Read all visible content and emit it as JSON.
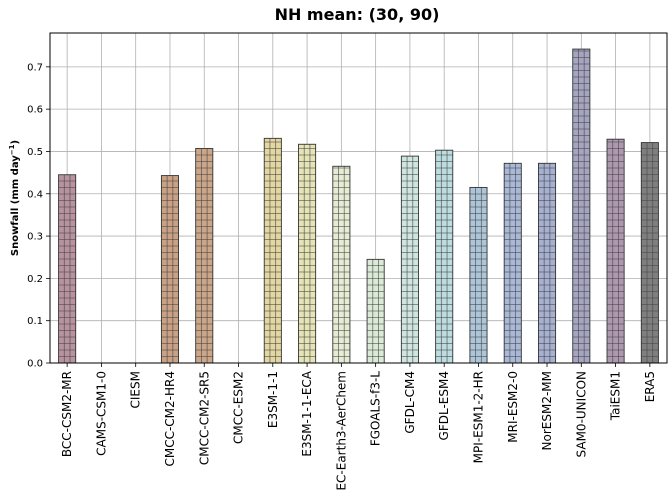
{
  "chart_data": {
    "type": "bar",
    "title": "NH mean: (30, 90)",
    "ylabel_main": "Snowfall (mm day",
    "ylabel_exp": "−1",
    "ylabel_close": ")",
    "ylim": [
      0,
      0.78
    ],
    "yticks": [
      "0.0",
      "0.1",
      "0.2",
      "0.3",
      "0.4",
      "0.5",
      "0.6",
      "0.7"
    ],
    "ytick_values": [
      0,
      0.1,
      0.2,
      0.3,
      0.4,
      0.5,
      0.6,
      0.7
    ],
    "grid": true,
    "hatch": "grid",
    "categories": [
      "BCC-CSM2-MR",
      "CAMS-CSM1-0",
      "CIESM",
      "CMCC-CM2-HR4",
      "CMCC-CM2-SR5",
      "CMCC-ESM2",
      "E3SM-1-1",
      "E3SM-1-1-ECA",
      "EC-Earth3-AerChem",
      "FGOALS-f3-L",
      "GFDL-CM4",
      "GFDL-ESM4",
      "MPI-ESM1-2-HR",
      "MRI-ESM2-0",
      "NorESM2-MM",
      "SAM0-UNICON",
      "TaiESM1",
      "ERA5"
    ],
    "values": [
      0.445,
      null,
      null,
      0.443,
      0.507,
      null,
      0.531,
      0.517,
      0.465,
      0.245,
      0.489,
      0.503,
      0.415,
      0.472,
      0.472,
      0.742,
      0.529,
      0.521
    ],
    "colors": [
      "#b8929f",
      null,
      null,
      "#c9a184",
      "#cba689",
      null,
      "#e3d7a1",
      "#e4e4b6",
      "#e6ecd3",
      "#dbead7",
      "#cfe6e0",
      "#bcdcdf",
      "#adc5d9",
      "#a9b8d6",
      "#a6b0d1",
      "#a5a5c1",
      "#ad98b0",
      "#7f7f7f"
    ]
  }
}
